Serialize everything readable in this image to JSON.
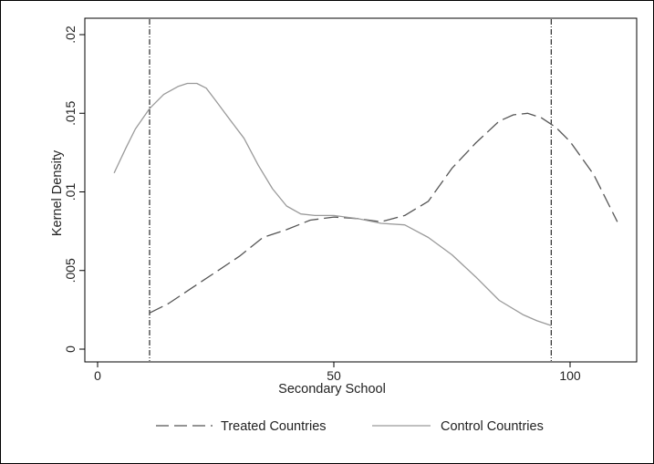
{
  "chart_data": {
    "type": "line",
    "xlabel": "Secondary School",
    "ylabel": "Kernel Density",
    "xlim": [
      0,
      110
    ],
    "ylim": [
      0,
      0.02
    ],
    "x_ticks": [
      0,
      50,
      100
    ],
    "x_tick_labels": [
      "0",
      "50",
      "100"
    ],
    "y_ticks": [
      0,
      0.005,
      0.01,
      0.015,
      0.02
    ],
    "y_tick_labels": [
      "0",
      ".005",
      ".01",
      ".015",
      ".02"
    ],
    "grid": false,
    "legend_position": "bottom",
    "reference_lines_x": [
      11,
      96
    ],
    "series": [
      {
        "name": "Treated Countries",
        "line_style": "dashed",
        "color": "#555555",
        "x": [
          11,
          15,
          20,
          25,
          30,
          35,
          40,
          45,
          50,
          55,
          60,
          65,
          70,
          75,
          80,
          85,
          88,
          91,
          94,
          97,
          100,
          105,
          110
        ],
        "y": [
          0.0023,
          0.0029,
          0.0039,
          0.0049,
          0.0059,
          0.0071,
          0.0076,
          0.0082,
          0.0084,
          0.0083,
          0.0081,
          0.0085,
          0.0094,
          0.0115,
          0.0131,
          0.0145,
          0.0149,
          0.015,
          0.0147,
          0.0141,
          0.0132,
          0.0111,
          0.0081
        ]
      },
      {
        "name": "Control Countries",
        "line_style": "solid",
        "color": "#9a9a9a",
        "x": [
          3.5,
          6,
          8,
          11,
          14,
          17,
          19,
          21,
          23,
          25,
          28,
          31,
          34,
          37,
          40,
          43,
          46,
          50,
          55,
          60,
          65,
          70,
          75,
          80,
          85,
          90,
          93,
          96
        ],
        "y": [
          0.0112,
          0.0128,
          0.014,
          0.0153,
          0.0162,
          0.0167,
          0.0169,
          0.0169,
          0.0166,
          0.0158,
          0.0146,
          0.0134,
          0.0117,
          0.0102,
          0.0091,
          0.0086,
          0.0085,
          0.0085,
          0.0083,
          0.008,
          0.0079,
          0.0071,
          0.006,
          0.0046,
          0.0031,
          0.0022,
          0.0018,
          0.0015
        ]
      }
    ]
  }
}
